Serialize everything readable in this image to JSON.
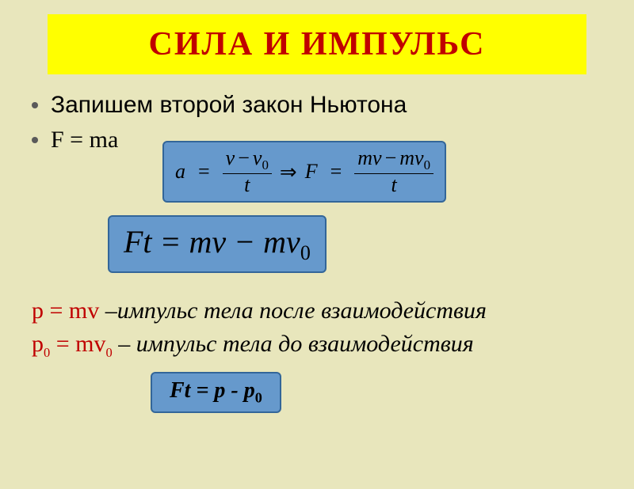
{
  "title": "СИЛА   И   ИМПУЛЬС",
  "bullet1": "Запишем второй закон Ньютона",
  "bullet2": "F = ma",
  "derivation": {
    "a_label": "a",
    "eq": "=",
    "v": "v",
    "v0": "v",
    "sub0": "0",
    "t": "t",
    "minus": "−",
    "implies": "⇒",
    "F": "F",
    "m": "m"
  },
  "main_formula": {
    "text": "Ft = mv − mv",
    "sub0": "0"
  },
  "line_p": {
    "lhs": "p = mv",
    "desc": " –импульс тела после взаимодействия"
  },
  "line_p0": {
    "lhs_p": "p",
    "lhs_sub": "0",
    "lhs_mid": " = mv",
    "lhs_sub2": "0",
    "desc": " – импульс тела до взаимодействия"
  },
  "final_formula": {
    "lhs": "Ft = p - p",
    "sub0": "0"
  },
  "colors": {
    "background": "#e8e6bc",
    "title_bg": "#ffff00",
    "title_fg": "#c00000",
    "box_bg": "#6699cc",
    "box_border": "#336699",
    "red_text": "#c00000"
  }
}
